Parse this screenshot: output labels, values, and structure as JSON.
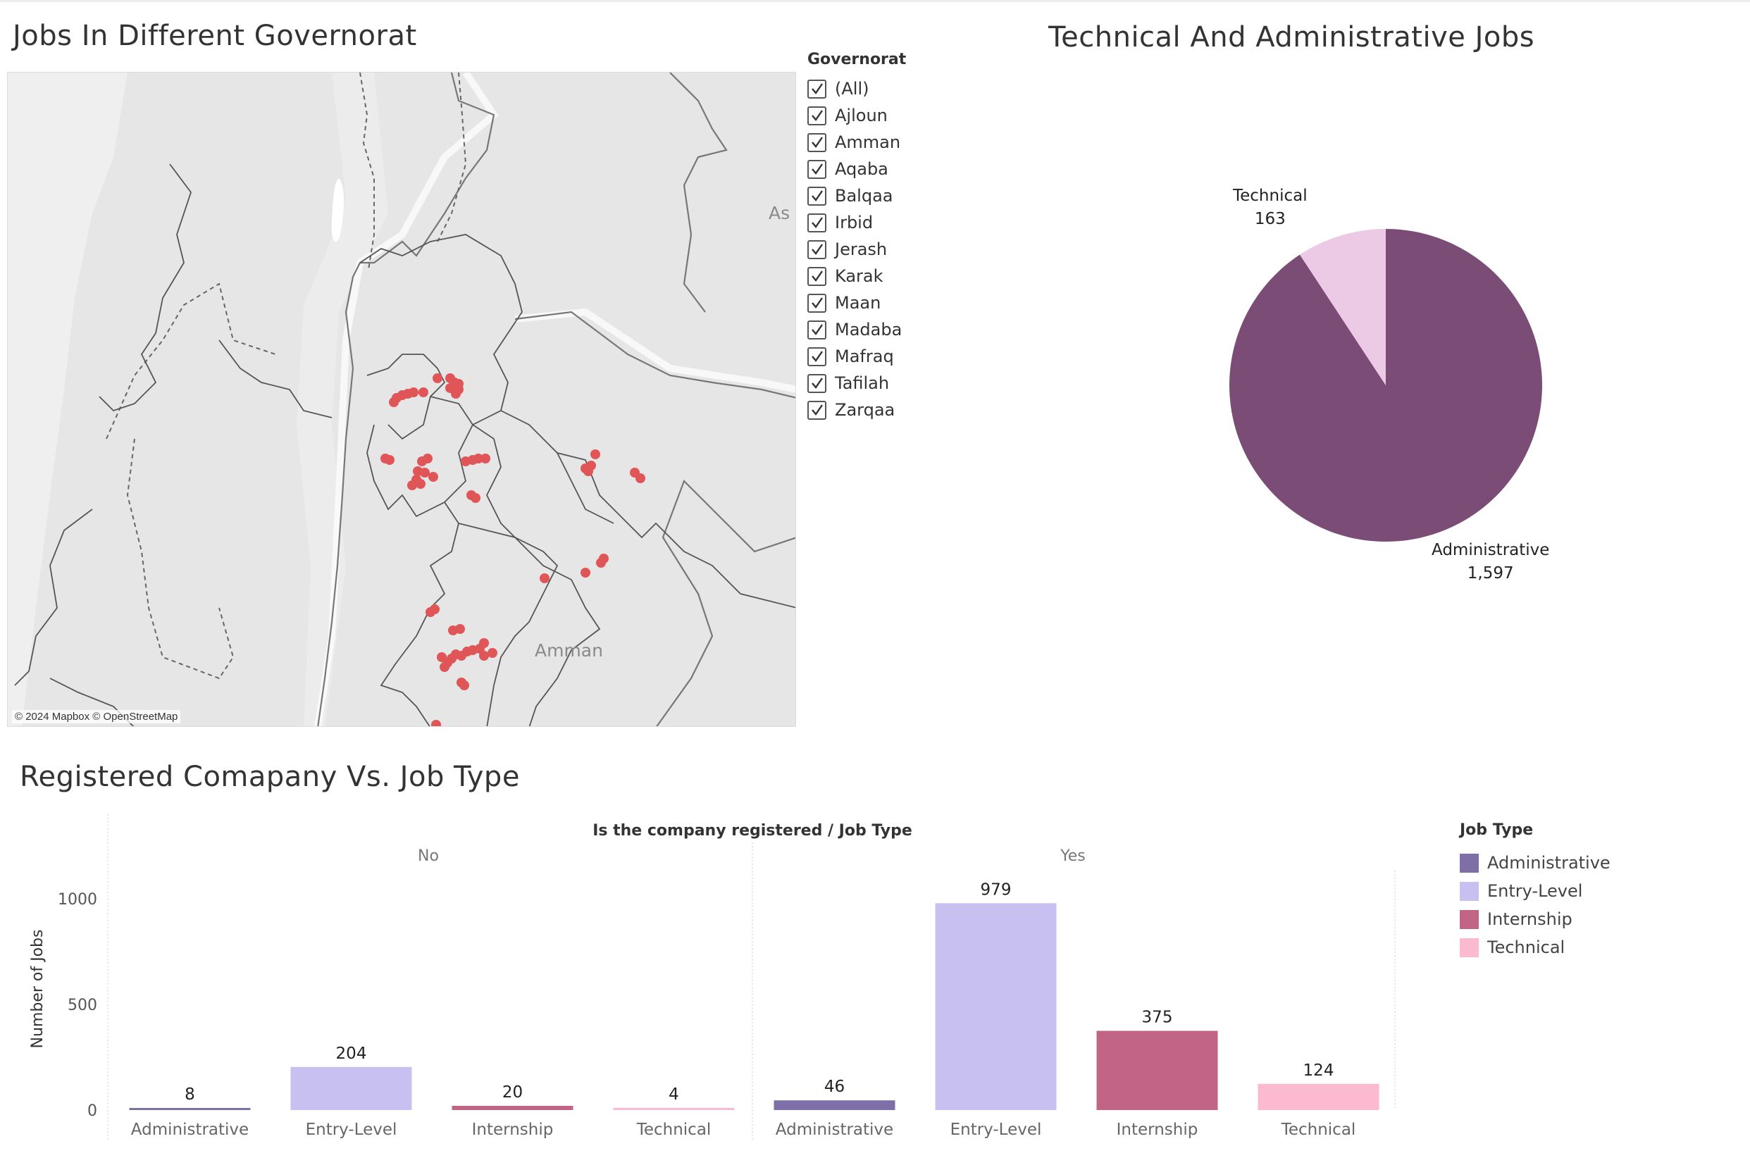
{
  "map": {
    "title": "Jobs In Different Governorat",
    "place_labels": {
      "amman": "Amman",
      "as": "As"
    },
    "attribution": "© 2024 Mapbox © OpenStreetMap",
    "point_color": "#e05557",
    "points": [
      [
        548,
        468
      ],
      [
        552,
        462
      ],
      [
        560,
        458
      ],
      [
        568,
        456
      ],
      [
        576,
        454
      ],
      [
        590,
        454
      ],
      [
        610,
        434
      ],
      [
        628,
        434
      ],
      [
        634,
        440
      ],
      [
        640,
        442
      ],
      [
        628,
        448
      ],
      [
        636,
        456
      ],
      [
        640,
        450
      ],
      [
        536,
        548
      ],
      [
        542,
        550
      ],
      [
        582,
        566
      ],
      [
        592,
        568
      ],
      [
        580,
        578
      ],
      [
        586,
        584
      ],
      [
        574,
        586
      ],
      [
        596,
        548
      ],
      [
        588,
        552
      ],
      [
        604,
        574
      ],
      [
        650,
        552
      ],
      [
        660,
        550
      ],
      [
        668,
        548
      ],
      [
        678,
        548
      ],
      [
        658,
        600
      ],
      [
        664,
        604
      ],
      [
        820,
        562
      ],
      [
        824,
        566
      ],
      [
        828,
        558
      ],
      [
        834,
        542
      ],
      [
        890,
        568
      ],
      [
        898,
        576
      ],
      [
        762,
        718
      ],
      [
        820,
        710
      ],
      [
        842,
        696
      ],
      [
        846,
        690
      ],
      [
        600,
        766
      ],
      [
        606,
        762
      ],
      [
        632,
        792
      ],
      [
        642,
        790
      ],
      [
        616,
        830
      ],
      [
        624,
        838
      ],
      [
        630,
        832
      ],
      [
        636,
        826
      ],
      [
        644,
        828
      ],
      [
        652,
        822
      ],
      [
        660,
        820
      ],
      [
        670,
        818
      ],
      [
        676,
        810
      ],
      [
        688,
        824
      ],
      [
        676,
        828
      ],
      [
        620,
        844
      ],
      [
        644,
        866
      ],
      [
        648,
        870
      ],
      [
        608,
        926
      ],
      [
        612,
        934
      ],
      [
        606,
        936
      ],
      [
        614,
        942
      ],
      [
        618,
        940
      ],
      [
        594,
        998
      ],
      [
        622,
        998
      ],
      [
        612,
        1014
      ],
      [
        616,
        1020
      ]
    ]
  },
  "filter": {
    "title": "Governorat",
    "items": [
      "(All)",
      "Ajloun",
      "Amman",
      "Aqaba",
      "Balqaa",
      "Irbid",
      "Jerash",
      "Karak",
      "Maan",
      "Madaba",
      "Mafraq",
      "Tafilah",
      "Zarqaa"
    ]
  },
  "pie": {
    "title": "Technical And Administrative Jobs",
    "labels": {
      "technical_name": "Technical",
      "technical_value": "163",
      "administrative_name": "Administrative",
      "administrative_value": "1,597"
    }
  },
  "bar": {
    "title": "Registered Comapany Vs. Job Type",
    "header": "Is the company registered  /  Job Type",
    "ylabel": "Number of Jobs",
    "panels": [
      "No",
      "Yes"
    ]
  },
  "legend": {
    "title": "Job Type",
    "items": [
      {
        "label": "Administrative",
        "color": "#7e6fa6"
      },
      {
        "label": "Entry-Level",
        "color": "#c7c0f0"
      },
      {
        "label": "Internship",
        "color": "#c26486"
      },
      {
        "label": "Technical",
        "color": "#fcbad0"
      }
    ]
  },
  "chart_data": [
    {
      "type": "pie",
      "title": "Technical And Administrative Jobs",
      "slices": [
        {
          "name": "Administrative",
          "value": 1597,
          "color": "#7b4c76"
        },
        {
          "name": "Technical",
          "value": 163,
          "color": "#ecc9e4"
        }
      ]
    },
    {
      "type": "bar",
      "title": "Registered Comapany Vs. Job Type",
      "xlabel": "Is the company registered  /  Job Type",
      "ylabel": "Number of Jobs",
      "ylim": [
        0,
        1350
      ],
      "yticks": [
        "0",
        "500",
        "1000"
      ],
      "groups": [
        "No",
        "Yes"
      ],
      "categories": [
        "Administrative",
        "Entry-Level",
        "Internship",
        "Technical"
      ],
      "series": [
        {
          "name": "No",
          "values": [
            8,
            204,
            20,
            4
          ]
        },
        {
          "name": "Yes",
          "values": [
            46,
            979,
            375,
            124
          ]
        }
      ],
      "colors": [
        "#7e6fa6",
        "#c7c0f0",
        "#c26486",
        "#fcbad0"
      ]
    }
  ]
}
